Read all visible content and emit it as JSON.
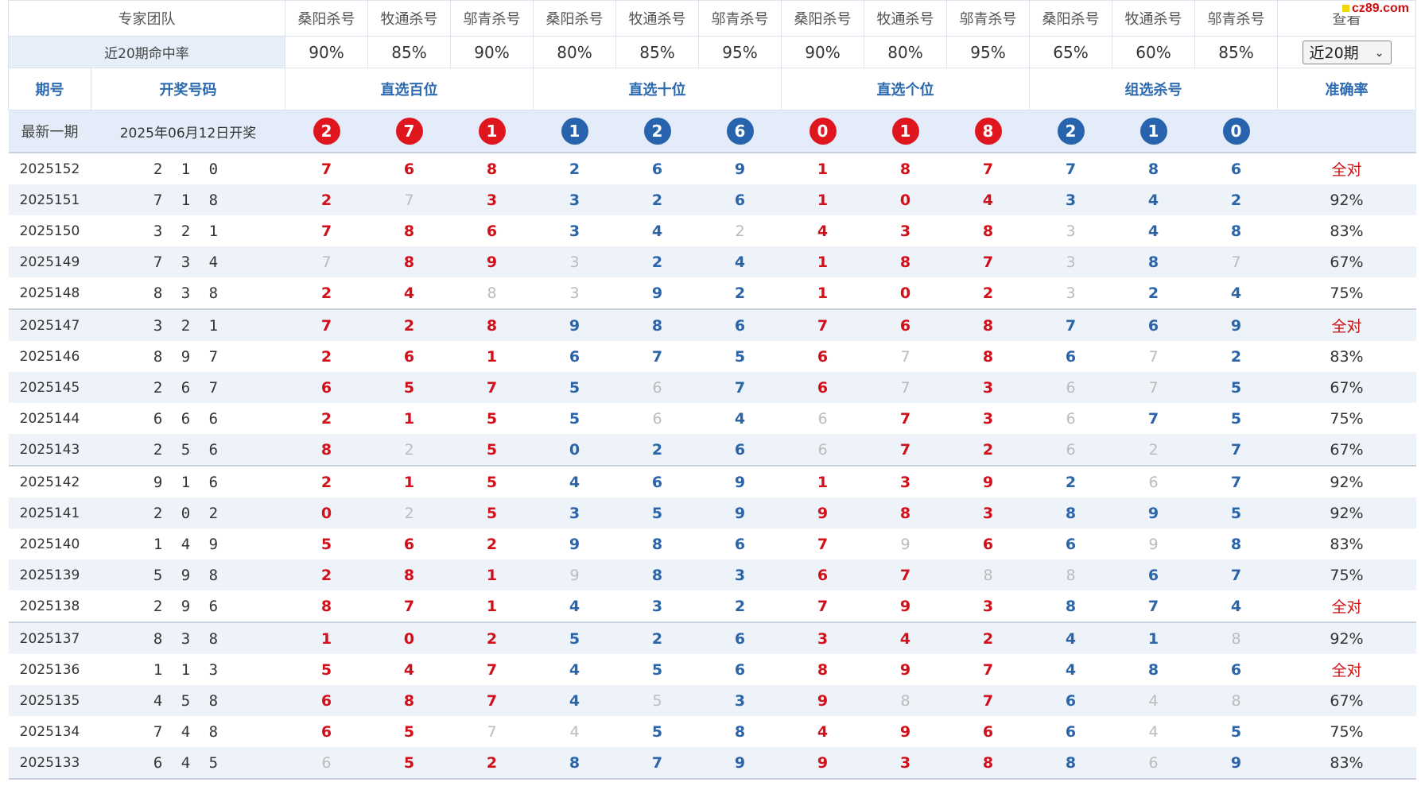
{
  "header": {
    "team_label": "专家团队",
    "experts": [
      "桑阳杀号",
      "牧通杀号",
      "邬青杀号",
      "桑阳杀号",
      "牧通杀号",
      "邬青杀号",
      "桑阳杀号",
      "牧通杀号",
      "邬青杀号",
      "桑阳杀号",
      "牧通杀号",
      "邬青杀号"
    ],
    "view_label": "查看",
    "rate_label": "近20期命中率",
    "rates": [
      "90%",
      "85%",
      "90%",
      "80%",
      "85%",
      "95%",
      "90%",
      "80%",
      "95%",
      "65%",
      "60%",
      "85%"
    ],
    "select_value": "近20期"
  },
  "columns": {
    "period": "期号",
    "draw": "开奖号码",
    "hundreds": "直选百位",
    "tens": "直选十位",
    "units": "直选个位",
    "group": "组选杀号",
    "accuracy": "准确率"
  },
  "latest": {
    "label": "最新一期",
    "date_text": "2025年06月12日开奖",
    "balls": [
      "2",
      "7",
      "1",
      "1",
      "2",
      "6",
      "0",
      "1",
      "8",
      "2",
      "1",
      "0"
    ]
  },
  "logo": "cz89.com",
  "rows": [
    {
      "period": "2025152",
      "draw": "2 1 0",
      "kills": [
        "7",
        "6",
        "8",
        "2",
        "6",
        "9",
        "1",
        "8",
        "7",
        "7",
        "8",
        "6"
      ],
      "miss": [],
      "accuracy": "全对"
    },
    {
      "period": "2025151",
      "draw": "7 1 8",
      "kills": [
        "2",
        "7",
        "3",
        "3",
        "2",
        "6",
        "1",
        "0",
        "4",
        "3",
        "4",
        "2"
      ],
      "miss": [
        1
      ],
      "accuracy": "92%"
    },
    {
      "period": "2025150",
      "draw": "3 2 1",
      "kills": [
        "7",
        "8",
        "6",
        "3",
        "4",
        "2",
        "4",
        "3",
        "8",
        "3",
        "4",
        "8"
      ],
      "miss": [
        5,
        9
      ],
      "accuracy": "83%"
    },
    {
      "period": "2025149",
      "draw": "7 3 4",
      "kills": [
        "7",
        "8",
        "9",
        "3",
        "2",
        "4",
        "1",
        "8",
        "7",
        "3",
        "8",
        "7"
      ],
      "miss": [
        0,
        3,
        9,
        11
      ],
      "accuracy": "67%"
    },
    {
      "period": "2025148",
      "draw": "8 3 8",
      "kills": [
        "2",
        "4",
        "8",
        "3",
        "9",
        "2",
        "1",
        "0",
        "2",
        "3",
        "2",
        "4"
      ],
      "miss": [
        2,
        3,
        9
      ],
      "accuracy": "75%"
    },
    {
      "period": "2025147",
      "draw": "3 2 1",
      "kills": [
        "7",
        "2",
        "8",
        "9",
        "8",
        "6",
        "7",
        "6",
        "8",
        "7",
        "6",
        "9"
      ],
      "miss": [],
      "accuracy": "全对"
    },
    {
      "period": "2025146",
      "draw": "8 9 7",
      "kills": [
        "2",
        "6",
        "1",
        "6",
        "7",
        "5",
        "6",
        "7",
        "8",
        "6",
        "7",
        "2"
      ],
      "miss": [
        7,
        10
      ],
      "accuracy": "83%"
    },
    {
      "period": "2025145",
      "draw": "2 6 7",
      "kills": [
        "6",
        "5",
        "7",
        "5",
        "6",
        "7",
        "6",
        "7",
        "3",
        "6",
        "7",
        "5"
      ],
      "miss": [
        4,
        7,
        9,
        10
      ],
      "accuracy": "67%"
    },
    {
      "period": "2025144",
      "draw": "6 6 6",
      "kills": [
        "2",
        "1",
        "5",
        "5",
        "6",
        "4",
        "6",
        "7",
        "3",
        "6",
        "7",
        "5"
      ],
      "miss": [
        4,
        6,
        9
      ],
      "accuracy": "75%"
    },
    {
      "period": "2025143",
      "draw": "2 5 6",
      "kills": [
        "8",
        "2",
        "5",
        "0",
        "2",
        "6",
        "6",
        "7",
        "2",
        "6",
        "2",
        "7"
      ],
      "miss": [
        1,
        6,
        9,
        10
      ],
      "accuracy": "67%"
    },
    {
      "period": "2025142",
      "draw": "9 1 6",
      "kills": [
        "2",
        "1",
        "5",
        "4",
        "6",
        "9",
        "1",
        "3",
        "9",
        "2",
        "6",
        "7"
      ],
      "miss": [
        10
      ],
      "accuracy": "92%"
    },
    {
      "period": "2025141",
      "draw": "2 0 2",
      "kills": [
        "0",
        "2",
        "5",
        "3",
        "5",
        "9",
        "9",
        "8",
        "3",
        "8",
        "9",
        "5"
      ],
      "miss": [
        1
      ],
      "accuracy": "92%"
    },
    {
      "period": "2025140",
      "draw": "1 4 9",
      "kills": [
        "5",
        "6",
        "2",
        "9",
        "8",
        "6",
        "7",
        "9",
        "6",
        "6",
        "9",
        "8"
      ],
      "miss": [
        7,
        10
      ],
      "accuracy": "83%"
    },
    {
      "period": "2025139",
      "draw": "5 9 8",
      "kills": [
        "2",
        "8",
        "1",
        "9",
        "8",
        "3",
        "6",
        "7",
        "8",
        "8",
        "6",
        "7"
      ],
      "miss": [
        3,
        8,
        9
      ],
      "accuracy": "75%"
    },
    {
      "period": "2025138",
      "draw": "2 9 6",
      "kills": [
        "8",
        "7",
        "1",
        "4",
        "3",
        "2",
        "7",
        "9",
        "3",
        "8",
        "7",
        "4"
      ],
      "miss": [],
      "accuracy": "全对"
    },
    {
      "period": "2025137",
      "draw": "8 3 8",
      "kills": [
        "1",
        "0",
        "2",
        "5",
        "2",
        "6",
        "3",
        "4",
        "2",
        "4",
        "1",
        "8"
      ],
      "miss": [
        11
      ],
      "accuracy": "92%"
    },
    {
      "period": "2025136",
      "draw": "1 1 3",
      "kills": [
        "5",
        "4",
        "7",
        "4",
        "5",
        "6",
        "8",
        "9",
        "7",
        "4",
        "8",
        "6"
      ],
      "miss": [],
      "accuracy": "全对"
    },
    {
      "period": "2025135",
      "draw": "4 5 8",
      "kills": [
        "6",
        "8",
        "7",
        "4",
        "5",
        "3",
        "9",
        "8",
        "7",
        "6",
        "4",
        "8"
      ],
      "miss": [
        4,
        7,
        10,
        11
      ],
      "accuracy": "67%"
    },
    {
      "period": "2025134",
      "draw": "7 4 8",
      "kills": [
        "6",
        "5",
        "7",
        "4",
        "5",
        "8",
        "4",
        "9",
        "6",
        "6",
        "4",
        "5"
      ],
      "miss": [
        2,
        3,
        10
      ],
      "accuracy": "75%"
    },
    {
      "period": "2025133",
      "draw": "6 4 5",
      "kills": [
        "6",
        "5",
        "2",
        "8",
        "7",
        "9",
        "9",
        "3",
        "8",
        "8",
        "6",
        "9"
      ],
      "miss": [
        0,
        10
      ],
      "accuracy": "83%"
    }
  ]
}
